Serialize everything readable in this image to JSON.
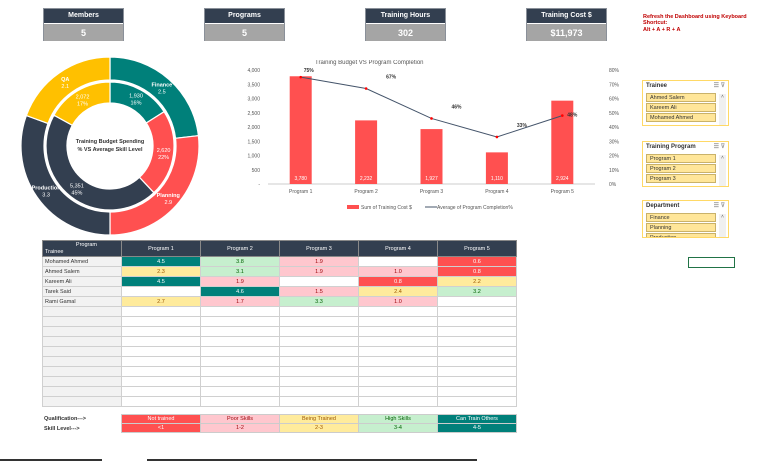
{
  "kpis": [
    {
      "label": "Members",
      "value": "5"
    },
    {
      "label": "Programs",
      "value": "5"
    },
    {
      "label": "Training Hours",
      "value": "302"
    },
    {
      "label": "Training Cost $",
      "value": "$11,973"
    }
  ],
  "note": {
    "line1": "Refresh the Dashboard using Keyboard Shortcut:",
    "line2": "Alt + A + R + A"
  },
  "donut": {
    "title_line1": "Training Budget Spending",
    "title_line2": "% VS Average Skill Level",
    "colors": {
      "Finance": "#00807a",
      "Planning": "#ff5050",
      "Production": "#333f50",
      "QA": "#ffc000"
    },
    "outer": [
      {
        "name": "Finance",
        "skill": "2.5"
      },
      {
        "name": "Planning",
        "skill": "2.9"
      },
      {
        "name": "Production",
        "skill": "3.3"
      },
      {
        "name": "QA",
        "skill": "2.1"
      }
    ],
    "inner": [
      {
        "name": "Finance",
        "cost": "1,930",
        "pct": "16%"
      },
      {
        "name": "Planning",
        "cost": "2,620",
        "pct": "22%"
      },
      {
        "name": "Production",
        "cost": "5,351",
        "pct": "45%"
      },
      {
        "name": "QA",
        "cost": "2,072",
        "pct": "17%"
      }
    ]
  },
  "chart_data": {
    "type": "bar",
    "title": "Training Budget VS Program Completion",
    "categories": [
      "Program 1",
      "Program 2",
      "Program 3",
      "Program 4",
      "Program 5"
    ],
    "series": [
      {
        "name": "Sum of Training Cost  $",
        "type": "bar",
        "axis": "left",
        "color": "#ff5050",
        "values": [
          3780,
          2232,
          1927,
          1110,
          2924
        ],
        "labels": [
          "3,780",
          "2,232",
          "1,927",
          "1,110",
          "2,924"
        ]
      },
      {
        "name": "Average of Program Completion%",
        "type": "line",
        "axis": "right",
        "color": "#44546a",
        "values": [
          75,
          67,
          46,
          33,
          48
        ],
        "labels": [
          "75%",
          "67%",
          "46%",
          "33%",
          "48%"
        ]
      }
    ],
    "ylim": [
      0,
      4000
    ],
    "y2lim": [
      0,
      80
    ],
    "yticks": [
      "-",
      "500",
      "1,000",
      "1,500",
      "2,000",
      "2,500",
      "3,000",
      "3,500",
      "4,000"
    ],
    "y2ticks": [
      "0%",
      "10%",
      "20%",
      "30%",
      "40%",
      "50%",
      "60%",
      "70%",
      "80%"
    ],
    "legend": "bottom"
  },
  "slicers": [
    {
      "title": "Trainee",
      "items": [
        "Ahmed Salem",
        "Kareem Ali",
        "Mohamed Ahmed"
      ]
    },
    {
      "title": "Training Program",
      "items": [
        "Program 1",
        "Program 2",
        "Program 3"
      ]
    },
    {
      "title": "Department",
      "items": [
        "Finance",
        "Planning",
        "Production"
      ]
    }
  ],
  "matrix": {
    "corner_top": "Program",
    "corner_bottom": "Trainee",
    "columns": [
      "Program 1",
      "Program 2",
      "Program 3",
      "Program 4",
      "Program 5"
    ],
    "rows": [
      {
        "name": "Mohamed Ahmed",
        "values": [
          "4.5",
          "3.8",
          "1.9",
          "",
          "0.6"
        ]
      },
      {
        "name": "Ahmed Salem",
        "values": [
          "2.3",
          "3.1",
          "1.9",
          "1.0",
          "0.8"
        ]
      },
      {
        "name": "Kareem Ali",
        "values": [
          "4.5",
          "1.9",
          "",
          "0.8",
          "2.2"
        ]
      },
      {
        "name": "Tarek Said",
        "values": [
          "",
          "4.6",
          "1.5",
          "2.4",
          "3.2"
        ]
      },
      {
        "name": "Rami Gamal",
        "values": [
          "2.7",
          "1.7",
          "3.3",
          "1.0",
          ""
        ]
      }
    ]
  },
  "legend": {
    "qual_label": "Qualification--->",
    "skill_label": "Skill Level--->",
    "levels": [
      {
        "q": "Not trained",
        "s": "<1",
        "bg": "#ff5050",
        "fg": "#ffffff"
      },
      {
        "q": "Poor Skills",
        "s": "1-2",
        "bg": "#ffc7ce",
        "fg": "#9c0006"
      },
      {
        "q": "Being Trained",
        "s": "2-3",
        "bg": "#ffeb9c",
        "fg": "#9c5700"
      },
      {
        "q": "High Skills",
        "s": "3-4",
        "bg": "#c6efce",
        "fg": "#006100"
      },
      {
        "q": "Can Train Others",
        "s": "4-5",
        "bg": "#00807a",
        "fg": "#ffffff"
      }
    ]
  }
}
